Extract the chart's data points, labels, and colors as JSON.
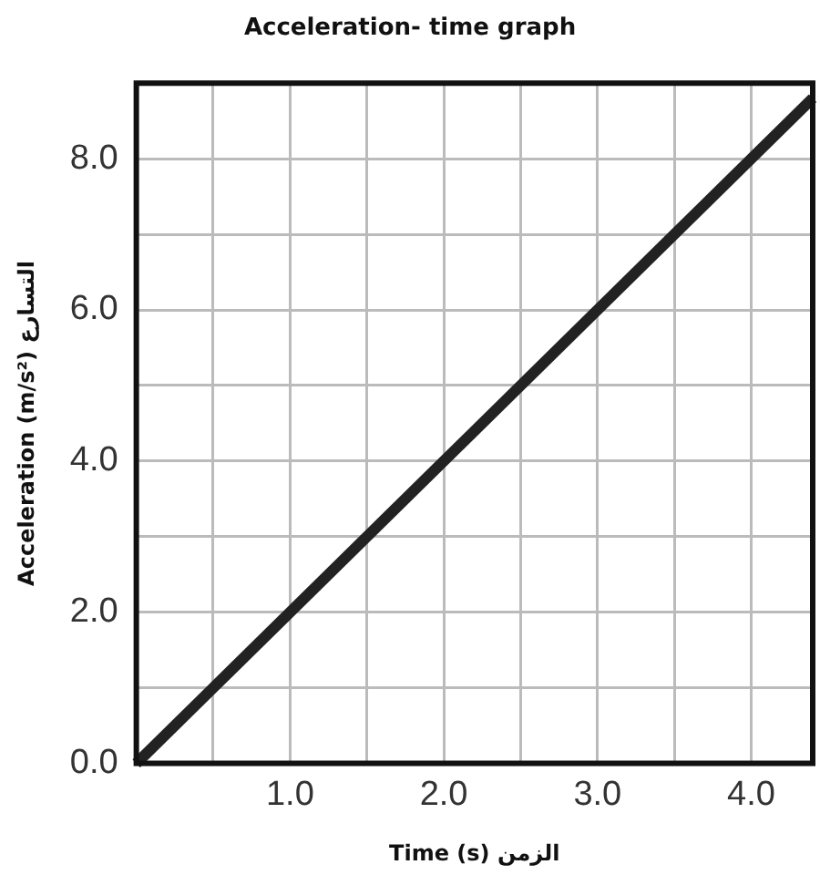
{
  "chart_data": {
    "type": "line",
    "title": "Acceleration- time graph",
    "xlabel": "Time (s) الزمن",
    "ylabel": "Acceleration (m/s²) التسارع",
    "x": [
      0,
      4.4
    ],
    "series": [
      {
        "color": "#222222",
        "values": [
          0,
          8.8
        ]
      }
    ],
    "xlim": [
      0,
      4.4
    ],
    "xticks": [
      {
        "value": 0,
        "label": null
      },
      {
        "value": 0.5,
        "label": null
      },
      {
        "value": 1,
        "label": "1.0"
      },
      {
        "value": 1.5,
        "label": null
      },
      {
        "value": 2,
        "label": "2.0"
      },
      {
        "value": 2.5,
        "label": null
      },
      {
        "value": 3,
        "label": "3.0"
      },
      {
        "value": 3.5,
        "label": null
      },
      {
        "value": 4,
        "label": "4.0"
      }
    ],
    "ylim": [
      0,
      9
    ],
    "yticks": [
      {
        "value": 0,
        "label": "0.0"
      },
      {
        "value": 1,
        "label": null
      },
      {
        "value": 2,
        "label": "2.0"
      },
      {
        "value": 3,
        "label": null
      },
      {
        "value": 4,
        "label": "4.0"
      },
      {
        "value": 5,
        "label": null
      },
      {
        "value": 6,
        "label": "6.0"
      },
      {
        "value": 7,
        "label": null
      },
      {
        "value": 8,
        "label": "8.0"
      }
    ],
    "grid": true,
    "legend": false,
    "marker": "none",
    "line_style": "solid"
  }
}
